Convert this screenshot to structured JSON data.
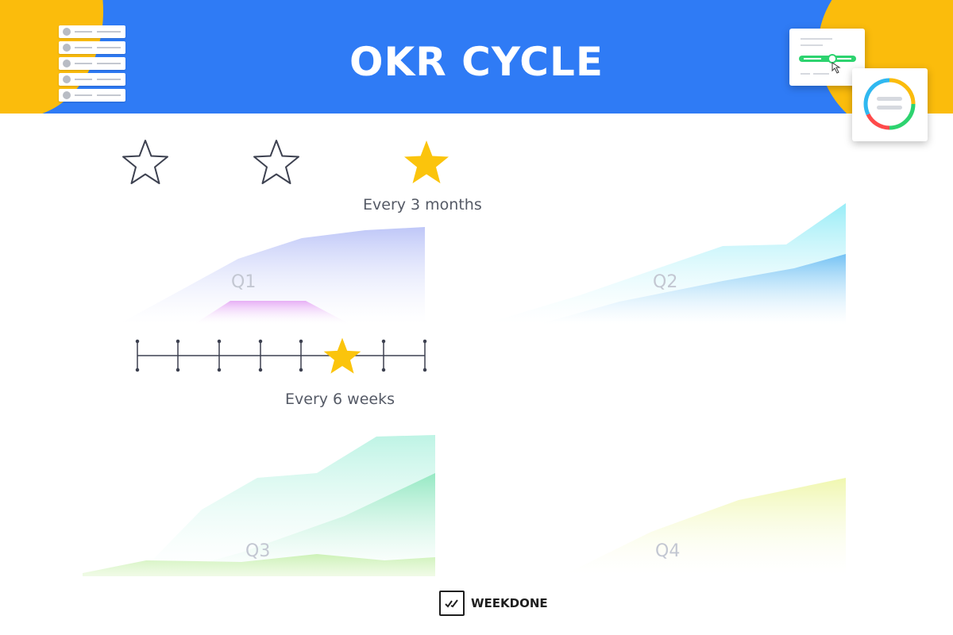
{
  "header": {
    "title": "OKR CYCLE",
    "background_color": "#2f7bf5",
    "accent_color": "#fbbc0c"
  },
  "cadence": {
    "quarterly": {
      "label": "Every 3 months",
      "stars": [
        "star-outline-icon",
        "star-outline-icon",
        "star-filled-icon"
      ]
    },
    "six_week": {
      "label": "Every 6 weeks",
      "ticks": 8,
      "star_icon": "star-filled-icon"
    }
  },
  "quarters": [
    {
      "label": "Q1",
      "color": "#8ea0f0"
    },
    {
      "label": "Q2",
      "color": "#5cc6f2"
    },
    {
      "label": "Q3",
      "color": "#6ee0b4"
    },
    {
      "label": "Q4",
      "color": "#eef5a8"
    }
  ],
  "brand": {
    "name": "WEEKDONE",
    "icon": "checkmarks-icon"
  }
}
